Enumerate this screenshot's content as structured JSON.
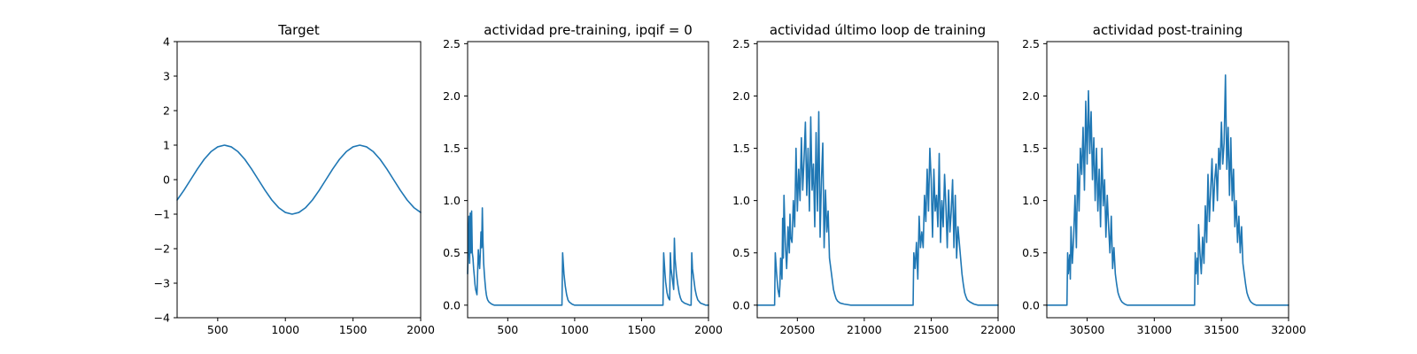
{
  "figure": {
    "background": "#ffffff",
    "line_color": "#1f77b4"
  },
  "chart_data": [
    {
      "type": "line",
      "title": "Target",
      "xlabel": "",
      "ylabel": "",
      "xlim": [
        200,
        2000
      ],
      "ylim": [
        -4,
        4
      ],
      "xticks": [
        500,
        1000,
        1500,
        2000
      ],
      "yticks": [
        -4,
        -3,
        -2,
        -1,
        0,
        1,
        2,
        3,
        4
      ],
      "grid": false,
      "series": [
        {
          "color": "#1f77b4",
          "x": [
            200,
            250,
            300,
            350,
            400,
            450,
            500,
            550,
            600,
            650,
            700,
            750,
            800,
            850,
            900,
            950,
            1000,
            1050,
            1100,
            1150,
            1200,
            1250,
            1300,
            1350,
            1400,
            1450,
            1500,
            1550,
            1600,
            1650,
            1700,
            1750,
            1800,
            1850,
            1900,
            1950,
            2000
          ],
          "y": [
            -0.59,
            -0.31,
            0.0,
            0.31,
            0.59,
            0.81,
            0.95,
            1.0,
            0.95,
            0.81,
            0.59,
            0.31,
            0.0,
            -0.31,
            -0.59,
            -0.81,
            -0.95,
            -1.0,
            -0.95,
            -0.81,
            -0.59,
            -0.31,
            0.0,
            0.31,
            0.59,
            0.81,
            0.95,
            1.0,
            0.95,
            0.81,
            0.59,
            0.31,
            0.0,
            -0.31,
            -0.59,
            -0.81,
            -0.95
          ]
        }
      ]
    },
    {
      "type": "line",
      "title": "actividad pre-training, ipqif = 0",
      "xlabel": "",
      "ylabel": "",
      "xlim": [
        200,
        2000
      ],
      "ylim": [
        -0.12,
        2.52
      ],
      "xticks": [
        500,
        1000,
        1500,
        2000
      ],
      "yticks": [
        0.0,
        0.5,
        1.0,
        1.5,
        2.0,
        2.5
      ],
      "grid": false,
      "series": [
        {
          "color": "#1f77b4",
          "x": [
            200,
            210,
            215,
            220,
            225,
            230,
            235,
            240,
            245,
            250,
            255,
            260,
            270,
            280,
            290,
            295,
            300,
            305,
            310,
            315,
            320,
            325,
            330,
            335,
            340,
            345,
            350,
            360,
            370,
            380,
            400,
            500,
            600,
            700,
            800,
            905,
            910,
            915,
            920,
            930,
            940,
            950,
            960,
            980,
            1000,
            1100,
            1200,
            1300,
            1400,
            1500,
            1600,
            1660,
            1665,
            1670,
            1675,
            1680,
            1690,
            1700,
            1710,
            1715,
            1720,
            1730,
            1740,
            1745,
            1750,
            1760,
            1770,
            1780,
            1790,
            1800,
            1820,
            1840,
            1860,
            1870,
            1875,
            1880,
            1890,
            1900,
            1910,
            1920,
            1940,
            1960,
            1980,
            2000
          ],
          "y": [
            0.3,
            0.85,
            0.4,
            0.88,
            0.5,
            0.9,
            0.5,
            0.45,
            0.35,
            0.28,
            0.2,
            0.15,
            0.1,
            0.53,
            0.35,
            0.5,
            0.7,
            0.55,
            0.93,
            0.6,
            0.4,
            0.3,
            0.22,
            0.15,
            0.1,
            0.07,
            0.05,
            0.03,
            0.02,
            0.01,
            0.0,
            0.0,
            0.0,
            0.0,
            0.0,
            0.0,
            0.5,
            0.4,
            0.3,
            0.18,
            0.1,
            0.05,
            0.03,
            0.01,
            0.0,
            0.0,
            0.0,
            0.0,
            0.0,
            0.0,
            0.0,
            0.0,
            0.5,
            0.4,
            0.3,
            0.22,
            0.12,
            0.07,
            0.05,
            0.5,
            0.35,
            0.25,
            0.15,
            0.64,
            0.45,
            0.3,
            0.2,
            0.12,
            0.07,
            0.04,
            0.02,
            0.01,
            0.0,
            0.0,
            0.5,
            0.35,
            0.25,
            0.15,
            0.09,
            0.05,
            0.02,
            0.01,
            0.0,
            0.0
          ]
        }
      ]
    },
    {
      "type": "line",
      "title": "actividad último loop de training",
      "xlabel": "",
      "ylabel": "",
      "xlim": [
        20200,
        22000
      ],
      "ylim": [
        -0.12,
        2.52
      ],
      "xticks": [
        20500,
        21000,
        21500,
        22000
      ],
      "yticks": [
        0.0,
        0.5,
        1.0,
        1.5,
        2.0,
        2.5
      ],
      "grid": false,
      "series": [
        {
          "color": "#1f77b4",
          "x": [
            20200,
            20250,
            20300,
            20330,
            20335,
            20345,
            20355,
            20365,
            20370,
            20375,
            20385,
            20390,
            20395,
            20400,
            20410,
            20420,
            20425,
            20430,
            20440,
            20445,
            20450,
            20460,
            20470,
            20480,
            20490,
            20500,
            20510,
            20520,
            20530,
            20540,
            20550,
            20560,
            20570,
            20580,
            20590,
            20600,
            20610,
            20620,
            20630,
            20640,
            20650,
            20660,
            20670,
            20680,
            20690,
            20700,
            20710,
            20720,
            20730,
            20740,
            20750,
            20760,
            20770,
            20780,
            20790,
            20800,
            20820,
            20850,
            20900,
            21000,
            21100,
            21200,
            21300,
            21365,
            21370,
            21380,
            21390,
            21400,
            21410,
            21420,
            21430,
            21440,
            21450,
            21460,
            21470,
            21480,
            21490,
            21500,
            21510,
            21520,
            21530,
            21540,
            21550,
            21560,
            21570,
            21580,
            21590,
            21600,
            21610,
            21620,
            21630,
            21640,
            21650,
            21660,
            21670,
            21680,
            21690,
            21700,
            21710,
            21720,
            21730,
            21740,
            21750,
            21760,
            21770,
            21790,
            21820,
            21850,
            21900,
            21950,
            22000
          ],
          "y": [
            0.0,
            0.0,
            0.0,
            0.0,
            0.5,
            0.3,
            0.15,
            0.08,
            0.2,
            0.45,
            0.25,
            0.83,
            0.45,
            1.05,
            0.6,
            0.35,
            0.52,
            0.75,
            0.5,
            0.87,
            0.65,
            0.6,
            1.0,
            0.75,
            1.5,
            0.9,
            1.3,
            1.0,
            1.6,
            1.1,
            1.4,
            1.75,
            1.05,
            1.5,
            0.9,
            1.8,
            1.1,
            1.35,
            0.75,
            1.65,
            0.9,
            1.85,
            0.65,
            1.2,
            1.55,
            0.55,
            1.1,
            0.7,
            0.9,
            0.45,
            0.35,
            0.25,
            0.15,
            0.1,
            0.06,
            0.04,
            0.02,
            0.01,
            0.0,
            0.0,
            0.0,
            0.0,
            0.0,
            0.0,
            0.5,
            0.35,
            0.6,
            0.25,
            0.85,
            0.55,
            0.7,
            0.55,
            1.05,
            0.8,
            1.3,
            0.9,
            1.5,
            1.2,
            0.65,
            1.3,
            0.9,
            1.05,
            0.75,
            1.45,
            0.6,
            1.0,
            0.75,
            1.25,
            0.95,
            0.55,
            1.1,
            0.7,
            0.9,
            1.2,
            0.55,
            1.05,
            0.45,
            0.75,
            0.6,
            0.45,
            0.3,
            0.2,
            0.12,
            0.08,
            0.05,
            0.03,
            0.01,
            0.0,
            0.0,
            0.0,
            0.0
          ]
        }
      ]
    },
    {
      "type": "line",
      "title": "actividad post-training",
      "xlabel": "",
      "ylabel": "",
      "xlim": [
        30200,
        32000
      ],
      "ylim": [
        -0.12,
        2.52
      ],
      "xticks": [
        30500,
        31000,
        31500,
        32000
      ],
      "yticks": [
        0.0,
        0.5,
        1.0,
        1.5,
        2.0,
        2.5
      ],
      "grid": false,
      "series": [
        {
          "color": "#1f77b4",
          "x": [
            30200,
            30250,
            30300,
            30350,
            30355,
            30360,
            30370,
            30375,
            30380,
            30390,
            30400,
            30410,
            30420,
            30430,
            30440,
            30450,
            30460,
            30470,
            30480,
            30490,
            30500,
            30510,
            30520,
            30530,
            30540,
            30550,
            30560,
            30570,
            30580,
            30590,
            30600,
            30610,
            30620,
            30630,
            30640,
            30650,
            30660,
            30670,
            30680,
            30690,
            30700,
            30710,
            30720,
            30730,
            30740,
            30750,
            30760,
            30770,
            30780,
            30800,
            30830,
            30870,
            30950,
            31050,
            31150,
            31250,
            31300,
            31305,
            31310,
            31320,
            31325,
            31330,
            31340,
            31350,
            31360,
            31370,
            31380,
            31390,
            31400,
            31410,
            31420,
            31430,
            31440,
            31450,
            31460,
            31470,
            31480,
            31490,
            31500,
            31510,
            31520,
            31530,
            31540,
            31550,
            31560,
            31570,
            31580,
            31590,
            31600,
            31610,
            31620,
            31630,
            31640,
            31650,
            31660,
            31670,
            31680,
            31690,
            31700,
            31710,
            31720,
            31730,
            31740,
            31760,
            31780,
            31800,
            31850,
            31900,
            31950,
            32000
          ],
          "y": [
            0.0,
            0.0,
            0.0,
            0.0,
            0.5,
            0.3,
            0.48,
            0.25,
            0.75,
            0.4,
            0.65,
            1.05,
            0.55,
            1.35,
            0.9,
            1.5,
            1.25,
            1.7,
            1.1,
            1.95,
            1.35,
            2.05,
            1.45,
            1.85,
            1.2,
            1.6,
            1.0,
            1.5,
            0.9,
            1.3,
            0.75,
            1.5,
            0.95,
            1.2,
            0.65,
            1.05,
            0.75,
            0.5,
            0.85,
            0.35,
            0.55,
            0.3,
            0.2,
            0.12,
            0.08,
            0.05,
            0.03,
            0.02,
            0.01,
            0.0,
            0.0,
            0.0,
            0.0,
            0.0,
            0.0,
            0.0,
            0.0,
            0.5,
            0.3,
            0.45,
            0.2,
            0.77,
            0.5,
            0.3,
            0.65,
            0.4,
            0.95,
            0.6,
            1.25,
            0.8,
            1.1,
            1.4,
            0.9,
            1.2,
            1.35,
            1.0,
            1.5,
            1.3,
            1.75,
            1.35,
            1.55,
            2.2,
            1.3,
            1.7,
            1.05,
            1.6,
            1.0,
            1.3,
            0.75,
            1.0,
            0.6,
            0.85,
            0.5,
            0.75,
            0.4,
            0.3,
            0.2,
            0.12,
            0.08,
            0.05,
            0.03,
            0.02,
            0.01,
            0.0,
            0.0,
            0.0,
            0.0,
            0.0,
            0.0,
            0.0
          ]
        }
      ]
    }
  ]
}
